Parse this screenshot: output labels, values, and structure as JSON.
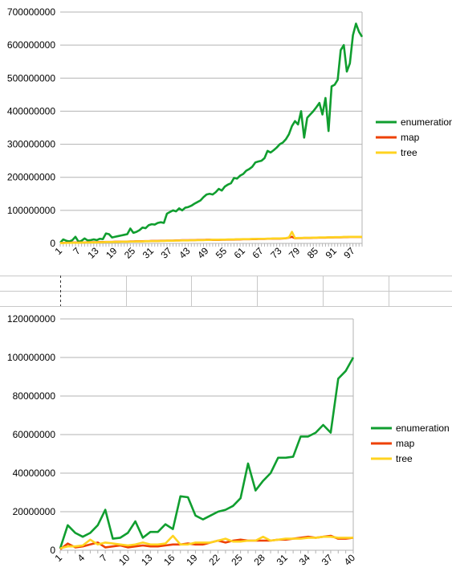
{
  "chart_data": [
    {
      "type": "line",
      "categories": [
        1,
        null,
        null,
        null,
        null,
        null,
        7,
        null,
        null,
        null,
        null,
        null,
        13,
        null,
        null,
        null,
        null,
        null,
        19,
        null,
        null,
        null,
        null,
        null,
        25,
        null,
        null,
        null,
        null,
        null,
        31,
        null,
        null,
        null,
        null,
        null,
        37,
        null,
        null,
        null,
        null,
        null,
        43,
        null,
        null,
        null,
        null,
        null,
        49,
        null,
        null,
        null,
        null,
        null,
        55,
        null,
        null,
        null,
        null,
        null,
        61,
        null,
        null,
        null,
        null,
        null,
        67,
        null,
        null,
        null,
        null,
        null,
        73,
        null,
        null,
        null,
        null,
        null,
        79,
        null,
        null,
        null,
        null,
        null,
        85,
        null,
        null,
        null,
        null,
        null,
        91,
        null,
        null,
        null,
        null,
        null,
        97,
        null,
        null,
        null
      ],
      "ylim": [
        0,
        700000000
      ],
      "yticks": [
        0,
        100000000,
        200000000,
        300000000,
        400000000,
        500000000,
        600000000,
        700000000
      ],
      "grid": true,
      "legend": "right",
      "series": [
        {
          "name": "enumeration",
          "color": "#109e2f",
          "values": [
            2000000,
            12000000,
            8000000,
            6000000,
            10000000,
            20000000,
            5000000,
            8000000,
            15000000,
            9000000,
            10000000,
            12000000,
            10000000,
            14000000,
            13000000,
            30000000,
            28000000,
            18000000,
            20000000,
            22000000,
            24000000,
            26000000,
            28000000,
            45000000,
            32000000,
            35000000,
            40000000,
            48000000,
            46000000,
            55000000,
            58000000,
            57000000,
            62000000,
            64000000,
            62000000,
            90000000,
            95000000,
            100000000,
            97000000,
            106000000,
            100000000,
            108000000,
            110000000,
            114000000,
            120000000,
            125000000,
            130000000,
            140000000,
            148000000,
            150000000,
            148000000,
            155000000,
            165000000,
            160000000,
            172000000,
            178000000,
            182000000,
            198000000,
            196000000,
            205000000,
            210000000,
            220000000,
            225000000,
            232000000,
            245000000,
            248000000,
            250000000,
            258000000,
            280000000,
            275000000,
            282000000,
            290000000,
            300000000,
            305000000,
            315000000,
            330000000,
            355000000,
            370000000,
            360000000,
            400000000,
            320000000,
            380000000,
            390000000,
            400000000,
            412000000,
            425000000,
            390000000,
            440000000,
            340000000,
            475000000,
            480000000,
            495000000,
            585000000,
            600000000,
            520000000,
            545000000,
            630000000,
            665000000,
            640000000,
            625000000
          ]
        },
        {
          "name": "map",
          "color": "#ee4000",
          "values": [
            1500000,
            1500000,
            2000000,
            2000000,
            2500000,
            2500000,
            2500000,
            3000000,
            3000000,
            3500000,
            3500000,
            3500000,
            3500000,
            4000000,
            4000000,
            4500000,
            4500000,
            4500000,
            5000000,
            5000000,
            5500000,
            5500000,
            5500000,
            6000000,
            6000000,
            6500000,
            6500000,
            6500000,
            7000000,
            7000000,
            7500000,
            7500000,
            7500000,
            8000000,
            8000000,
            8500000,
            8500000,
            8500000,
            9000000,
            9000000,
            9500000,
            9500000,
            9500000,
            10000000,
            10000000,
            10500000,
            10500000,
            10500000,
            11000000,
            11000000,
            10500000,
            10500000,
            10500000,
            11000000,
            11000000,
            11500000,
            11500000,
            11500000,
            12000000,
            12000000,
            12500000,
            12500000,
            12500000,
            13000000,
            13000000,
            13500000,
            13500000,
            13500000,
            14000000,
            14000000,
            14500000,
            14500000,
            14500000,
            15000000,
            15500000,
            17500000,
            20000000,
            15500000,
            16000000,
            16000000,
            16500000,
            16500000,
            16500000,
            17000000,
            17000000,
            17500000,
            17500000,
            17500000,
            18000000,
            18000000,
            18500000,
            18500000,
            18500000,
            19000000,
            19000000,
            19500000,
            19500000,
            19500000,
            19500000,
            19500000
          ]
        },
        {
          "name": "tree",
          "color": "#ffd320",
          "values": [
            1000000,
            1000000,
            1500000,
            1500000,
            2000000,
            2000000,
            2000000,
            2500000,
            2500000,
            3000000,
            3000000,
            3000000,
            3000000,
            3500000,
            3500000,
            4000000,
            4000000,
            4000000,
            4500000,
            4500000,
            5000000,
            5000000,
            5000000,
            5500000,
            5500000,
            6000000,
            6000000,
            6000000,
            6500000,
            6500000,
            7000000,
            7000000,
            7000000,
            7500000,
            7500000,
            8000000,
            8000000,
            8000000,
            8500000,
            8500000,
            9000000,
            9000000,
            9000000,
            9500000,
            9500000,
            10000000,
            10000000,
            10000000,
            10500000,
            10500000,
            11000000,
            11000000,
            11000000,
            11500000,
            11500000,
            12000000,
            12000000,
            12000000,
            12500000,
            12500000,
            13000000,
            13000000,
            13000000,
            13500000,
            13500000,
            14000000,
            14000000,
            14000000,
            14500000,
            14500000,
            15000000,
            15000000,
            15000000,
            15500000,
            16000000,
            18000000,
            35000000,
            16000000,
            16500000,
            16500000,
            17000000,
            17000000,
            17000000,
            17500000,
            17500000,
            18000000,
            18000000,
            18000000,
            18500000,
            18500000,
            19000000,
            19000000,
            19000000,
            19500000,
            19500000,
            20000000,
            20000000,
            20000000,
            20000000,
            20000000
          ]
        }
      ]
    },
    {
      "type": "line",
      "categories": [
        1,
        null,
        null,
        4,
        null,
        null,
        7,
        null,
        null,
        10,
        null,
        null,
        13,
        null,
        null,
        16,
        null,
        null,
        19,
        null,
        null,
        22,
        null,
        null,
        25,
        null,
        null,
        28,
        null,
        null,
        31,
        null,
        null,
        34,
        null,
        null,
        37,
        null,
        null,
        40
      ],
      "ylim": [
        0,
        120000000
      ],
      "yticks": [
        0,
        20000000,
        40000000,
        60000000,
        80000000,
        100000000,
        120000000
      ],
      "grid": true,
      "legend": "right",
      "series": [
        {
          "name": "enumeration",
          "color": "#109e2f",
          "values": [
            1000000,
            13000000,
            9000000,
            7000000,
            9000000,
            13000000,
            21000000,
            6000000,
            6500000,
            9000000,
            15000000,
            6500000,
            9500000,
            9500000,
            13500000,
            11000000,
            28000000,
            27500000,
            18000000,
            16000000,
            18000000,
            20000000,
            21000000,
            23000000,
            27000000,
            45000000,
            31000000,
            36000000,
            40000000,
            48000000,
            48000000,
            48500000,
            59000000,
            59000000,
            61000000,
            65000000,
            61000000,
            89000000,
            93000000,
            100000000
          ]
        },
        {
          "name": "map",
          "color": "#ee4000",
          "values": [
            500000,
            3500000,
            1500000,
            2000000,
            3000000,
            4000000,
            1500000,
            2000000,
            2500000,
            1500000,
            2000000,
            2500000,
            2000000,
            2000000,
            2500000,
            3000000,
            3000000,
            3500000,
            3000000,
            3000000,
            4000000,
            5000000,
            4000000,
            5000000,
            5500000,
            5000000,
            5000000,
            5000000,
            5000000,
            5500000,
            5500000,
            6000000,
            6500000,
            7000000,
            6500000,
            7000000,
            7500000,
            6000000,
            6000000,
            6500000
          ]
        },
        {
          "name": "tree",
          "color": "#ffd320",
          "values": [
            1000000,
            2000000,
            2000000,
            2500000,
            5500000,
            3000000,
            4000000,
            3500000,
            3000000,
            2500000,
            3000000,
            4000000,
            3000000,
            3000000,
            3500000,
            7500000,
            3000000,
            3000000,
            4000000,
            4000000,
            4000000,
            5000000,
            6000000,
            4500000,
            4500000,
            5000000,
            5000000,
            7000000,
            5000000,
            5500000,
            6000000,
            6000000,
            6000000,
            6500000,
            6500000,
            7000000,
            7000000,
            6500000,
            6500000,
            6500000
          ]
        }
      ]
    }
  ]
}
